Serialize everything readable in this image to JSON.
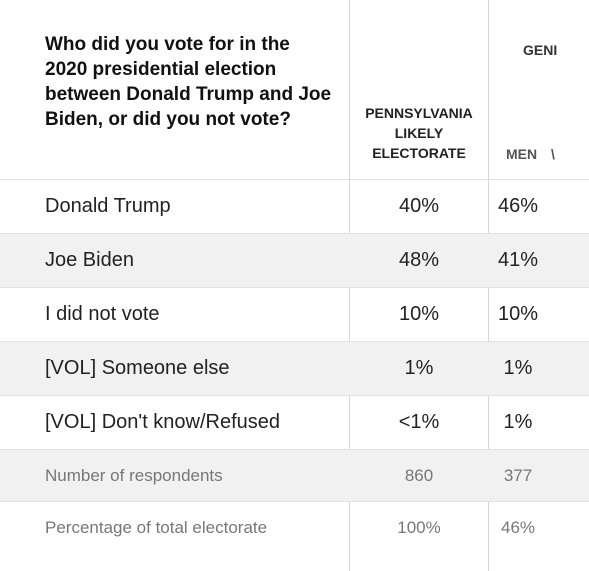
{
  "header": {
    "question": "Who did you vote for in the 2020 presidential election between Donald Trump and Joe Biden, or did you not vote?",
    "pa_column": "PENNSYLVANIA LIKELY ELECTORATE",
    "gender_group": "GENI",
    "men_column": "MEN",
    "women_column_partial": "\\"
  },
  "rows": [
    {
      "label": "Donald Trump",
      "pa": "40%",
      "men": "46%"
    },
    {
      "label": "Joe Biden",
      "pa": "48%",
      "men": "41%"
    },
    {
      "label": "I did not vote",
      "pa": "10%",
      "men": "10%"
    },
    {
      "label": "[VOL] Someone else",
      "pa": "1%",
      "men": "1%"
    },
    {
      "label": "[VOL] Don't know/Refused",
      "pa": "<1%",
      "men": "1%"
    }
  ],
  "meta_rows": [
    {
      "label": "Number of respondents",
      "pa": "860",
      "men": "377"
    },
    {
      "label": "Percentage of total electorate",
      "pa": "100%",
      "men": "46%"
    }
  ]
}
